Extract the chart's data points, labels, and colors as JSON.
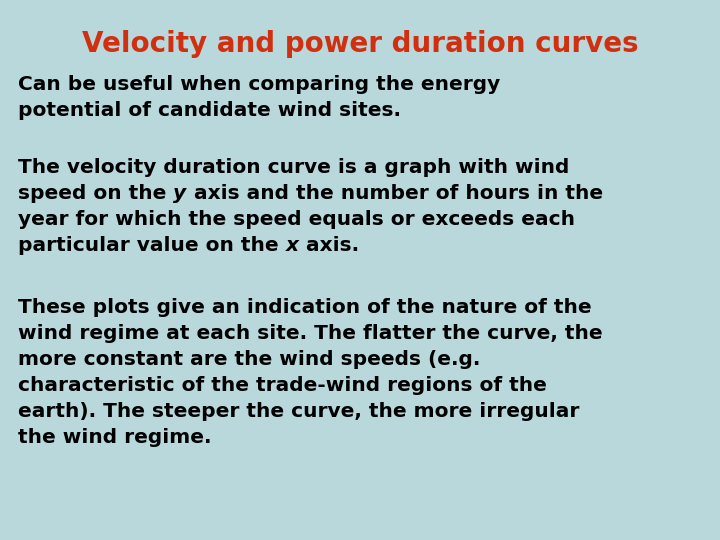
{
  "title": "Velocity and power duration curves",
  "title_color": "#d03010",
  "background_color": "#b8d8dc",
  "text_color": "#000000",
  "para1_line1": "Can be useful when comparing the energy",
  "para1_line2": "potential of candidate wind sites.",
  "para2_line1": "The velocity duration curve is a graph with wind",
  "para2_line2_pre": "speed on the ",
  "para2_line2_italic": "y",
  "para2_line2_post": " axis and the number of hours in the",
  "para2_line3": "year for which the speed equals or exceeds each",
  "para2_line4_pre": "particular value on the ",
  "para2_line4_italic": "x",
  "para2_line4_post": " axis.",
  "para3_line1": "These plots give an indication of the nature of the",
  "para3_line2": "wind regime at each site. The flatter the curve, the",
  "para3_line3": "more constant are the wind speeds (e.g.",
  "para3_line4": "characteristic of the trade-wind regions of the",
  "para3_line5": "earth). The steeper the curve, the more irregular",
  "para3_line6": "the wind regime.",
  "font_size_title": 20,
  "font_size_body": 14.5
}
